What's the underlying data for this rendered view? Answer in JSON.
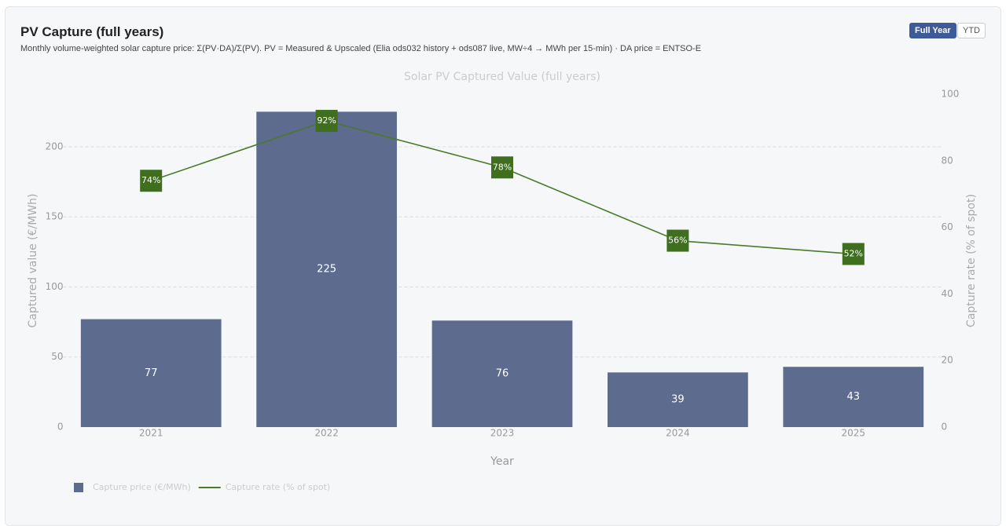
{
  "header": {
    "title": "PV Capture (full years)",
    "subtitle": "Monthly volume-weighted solar capture price: Σ(PV·DA)/Σ(PV). PV = Measured & Upscaled (Elia ods032 history + ods087 live, MW÷4 → MWh per 15-min) · DA price = ENTSO-E"
  },
  "buttons": [
    "Full Year",
    "YTD"
  ],
  "chart_data": {
    "type": "bar",
    "title": "Solar PV Captured Value (full years)",
    "x_label": "Year",
    "y_label": "Captured value (€/MWh)",
    "y2_label": "Capture rate (% of spot)",
    "categories": [
      "2021",
      "2022",
      "2023",
      "2024",
      "2025"
    ],
    "series": [
      {
        "name": "Capture price (€/MWh)",
        "type": "bar",
        "color": "#5d6b8f",
        "values": [
          77,
          225,
          76,
          39,
          43
        ]
      },
      {
        "name": "Capture rate (% of spot)",
        "type": "line",
        "axis": "y2",
        "color": "#4a7a2a",
        "values": [
          74,
          92,
          78,
          56,
          52
        ],
        "value_labels": [
          "74%",
          "92%",
          "78%",
          "56%",
          "52%"
        ]
      }
    ],
    "ylim": [
      0,
      237.5
    ],
    "yticks": [
      0,
      50,
      100,
      150,
      200
    ],
    "y2lim": [
      0,
      100
    ],
    "y2ticks": [
      0,
      20,
      40,
      60,
      80,
      100
    ],
    "grid": true
  }
}
